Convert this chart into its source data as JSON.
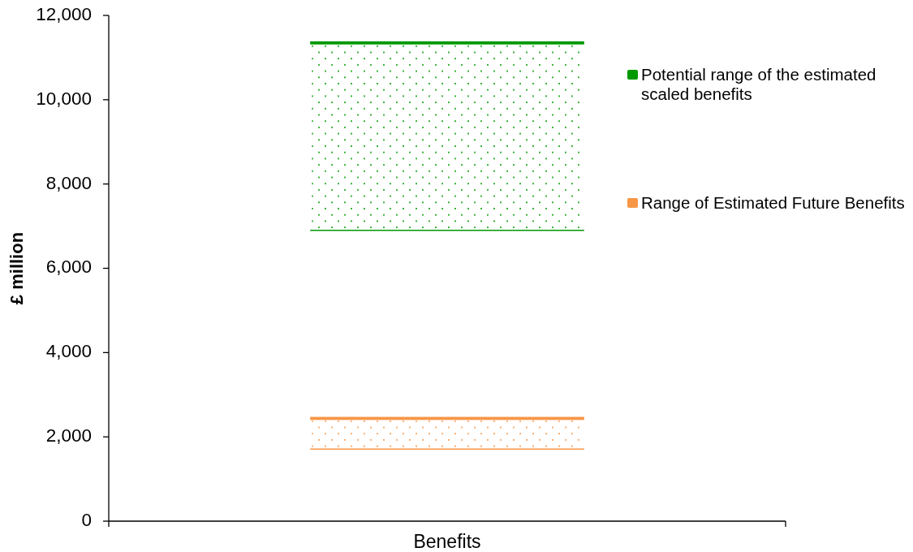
{
  "chart_data": {
    "type": "bar",
    "ylabel": "£ million",
    "categories": [
      "Benefits"
    ],
    "series": [
      {
        "name": "Potential range of the estimated scaled benefits",
        "color": "#009900",
        "values": [
          4450
        ],
        "base": [
          6900
        ]
      },
      {
        "name": "Range of Estimated Future Benefits",
        "color": "#f79646",
        "values": [
          730
        ],
        "base": [
          1710
        ]
      }
    ],
    "ylim": [
      0,
      12000
    ],
    "yticks": [
      0,
      {
        "value": 2000,
        "label": "2,000"
      },
      {
        "value": 4000,
        "label": "4,000"
      },
      {
        "value": 6000,
        "label": "6,000"
      },
      {
        "value": 8000,
        "label": "8,000"
      },
      {
        "value": 10000,
        "label": "10,000"
      },
      {
        "value": 12000,
        "label": "12,000"
      }
    ],
    "legend": "top right"
  }
}
